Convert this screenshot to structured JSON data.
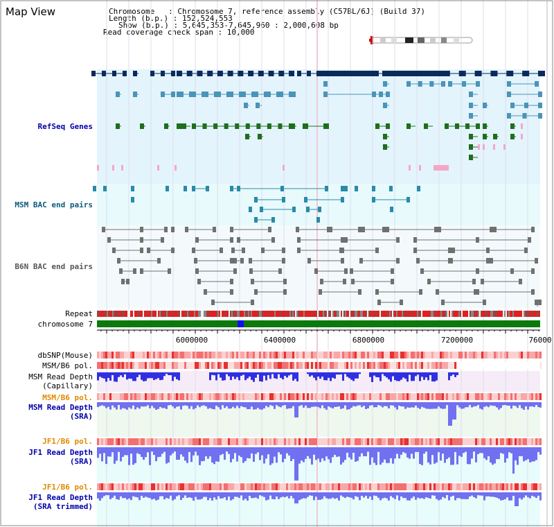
{
  "title": "Map View",
  "info": {
    "line1": "Chromosome   : Chromosome 7, reference assembly (C57BL/6J) (Build 37)",
    "line2": "Length (b.p.) : 152,524,553",
    "line3": "Show (b.p.) : 5,645,353-7,645,960 : 2,000,608 bp",
    "line4": "Read coverage check span : 10,000"
  },
  "track_labels": {
    "refseq": "RefSeq Genes",
    "msm_bac": "MSM BAC end pairs",
    "b6n_bac": "B6N BAC end pairs",
    "repeat": "Repeat",
    "chromosome": "chromosome 7",
    "dbsnp": "dbSNP(Mouse)",
    "msm_pol": "MSM/B6 pol.",
    "msm_depth_cap_1": "MSM Read Depth",
    "msm_depth_cap_2": "(Capillary)",
    "msm_pol2": "MSM/B6 pol.",
    "msm_depth_sra_1": "MSM Read Depth",
    "msm_depth_sra_2": "(SRA)",
    "jf1_pol": "JF1/B6 pol.",
    "jf1_depth_sra_1": "JF1 Read Depth",
    "jf1_depth_sra_2": "(SRA)",
    "jf1_pol2": "JF1/B6 pol.",
    "jf1_depth_trim_1": "JF1 Read Depth",
    "jf1_depth_trim_2": "(SRA trimmed)"
  },
  "axis_ticks": [
    "6000000",
    "6400000",
    "6800000",
    "7200000",
    "76000"
  ],
  "colors": {
    "refseq_dark": "#0b2a5c",
    "refseq_mid": "#4a94b8",
    "refseq_green": "#1e6e1e",
    "refseq_pink": "#f4a8c8",
    "refseq_bg": "#e4f4fc",
    "msm_bac": "#2a8aa8",
    "msm_bg": "#e8fafc",
    "b6n": "#707070",
    "chrom": "#0b7a0b",
    "chrom_mark": "#1010ee",
    "label_blue": "#0000aa",
    "label_teal": "#0a5a7a",
    "label_orange": "#e08a00",
    "depth_blue": "#3030e0",
    "depth_light": "#7070f0"
  }
}
